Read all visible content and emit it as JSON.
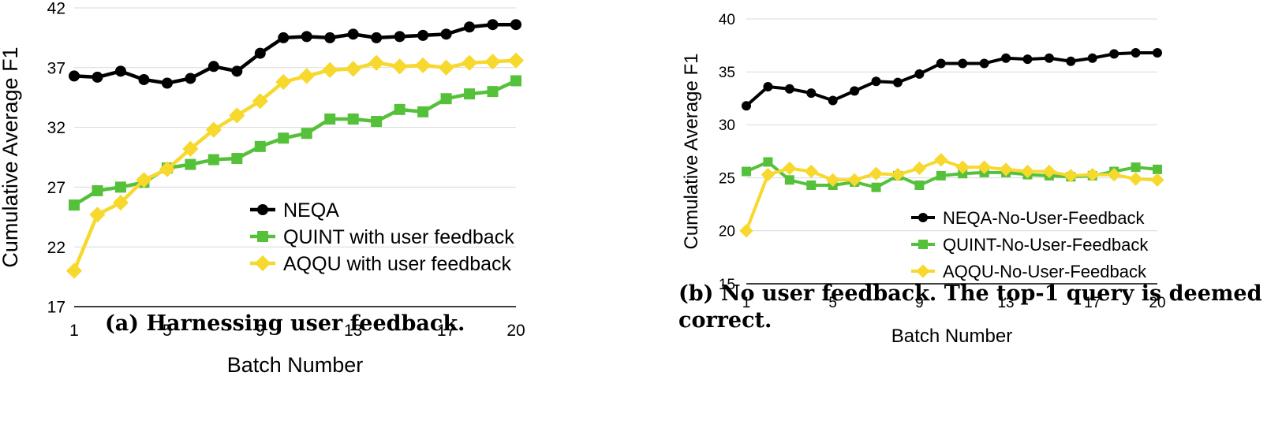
{
  "chart_data": [
    {
      "type": "line",
      "caption": "(a) Harnessing user feedback.",
      "xlabel": "Batch Number",
      "ylabel": "Cumulative Average F1",
      "xlim": [
        1,
        20
      ],
      "xticks": [
        1,
        5,
        9,
        13,
        17,
        20
      ],
      "ylim": [
        17,
        42
      ],
      "yticks": [
        17,
        22,
        27,
        32,
        37,
        42
      ],
      "grid": true,
      "legend_position": "center-right",
      "x": [
        1,
        2,
        3,
        4,
        5,
        6,
        7,
        8,
        9,
        10,
        11,
        12,
        13,
        14,
        15,
        16,
        17,
        18,
        19,
        20
      ],
      "series": [
        {
          "name": "NEQA",
          "color": "#000000",
          "marker": "circle",
          "values": [
            36.3,
            36.2,
            36.7,
            36.0,
            35.7,
            36.1,
            37.1,
            36.7,
            38.2,
            39.5,
            39.6,
            39.5,
            39.8,
            39.5,
            39.6,
            39.7,
            39.8,
            40.4,
            40.6,
            40.6
          ]
        },
        {
          "name": "QUINT with user feedback",
          "color": "#55c13b",
          "marker": "square",
          "values": [
            25.5,
            26.7,
            27.0,
            27.4,
            28.6,
            28.9,
            29.3,
            29.4,
            30.4,
            31.1,
            31.5,
            32.7,
            32.7,
            32.5,
            33.5,
            33.3,
            34.4,
            34.8,
            35.0,
            35.9
          ]
        },
        {
          "name": "AQQU with user feedback",
          "color": "#f7d82c",
          "marker": "diamond",
          "values": [
            20.0,
            24.7,
            25.7,
            27.6,
            28.5,
            30.2,
            31.8,
            33.0,
            34.2,
            35.8,
            36.3,
            36.8,
            36.9,
            37.4,
            37.1,
            37.2,
            37.0,
            37.4,
            37.5,
            37.6
          ]
        }
      ]
    },
    {
      "type": "line",
      "caption": "(b) No user feedback. The top-1 query is deemed correct.",
      "xlabel": "Batch Number",
      "ylabel": "Cumulative Average F1",
      "xlim": [
        1,
        20
      ],
      "xticks": [
        1,
        5,
        9,
        13,
        17,
        20
      ],
      "ylim": [
        15,
        40
      ],
      "yticks": [
        15,
        20,
        25,
        30,
        35,
        40
      ],
      "grid": true,
      "legend_position": "bottom-right",
      "x": [
        1,
        2,
        3,
        4,
        5,
        6,
        7,
        8,
        9,
        10,
        11,
        12,
        13,
        14,
        15,
        16,
        17,
        18,
        19,
        20
      ],
      "series": [
        {
          "name": "NEQA-No-User-Feedback",
          "color": "#000000",
          "marker": "circle",
          "values": [
            31.8,
            33.6,
            33.4,
            33.0,
            32.3,
            33.2,
            34.1,
            34.0,
            34.8,
            35.8,
            35.8,
            35.8,
            36.3,
            36.2,
            36.3,
            36.0,
            36.3,
            36.7,
            36.8,
            36.8
          ]
        },
        {
          "name": "QUINT-No-User-Feedback",
          "color": "#55c13b",
          "marker": "square",
          "values": [
            25.6,
            26.5,
            24.8,
            24.3,
            24.3,
            24.6,
            24.1,
            25.2,
            24.3,
            25.2,
            25.4,
            25.5,
            25.5,
            25.3,
            25.2,
            25.1,
            25.2,
            25.6,
            26.0,
            25.8
          ]
        },
        {
          "name": "AQQU-No-User-Feedback",
          "color": "#f7d82c",
          "marker": "diamond",
          "values": [
            20.0,
            25.3,
            25.9,
            25.6,
            24.8,
            24.8,
            25.4,
            25.3,
            25.9,
            26.7,
            26.0,
            26.0,
            25.8,
            25.6,
            25.6,
            25.2,
            25.3,
            25.3,
            24.9,
            24.8
          ]
        }
      ]
    }
  ]
}
